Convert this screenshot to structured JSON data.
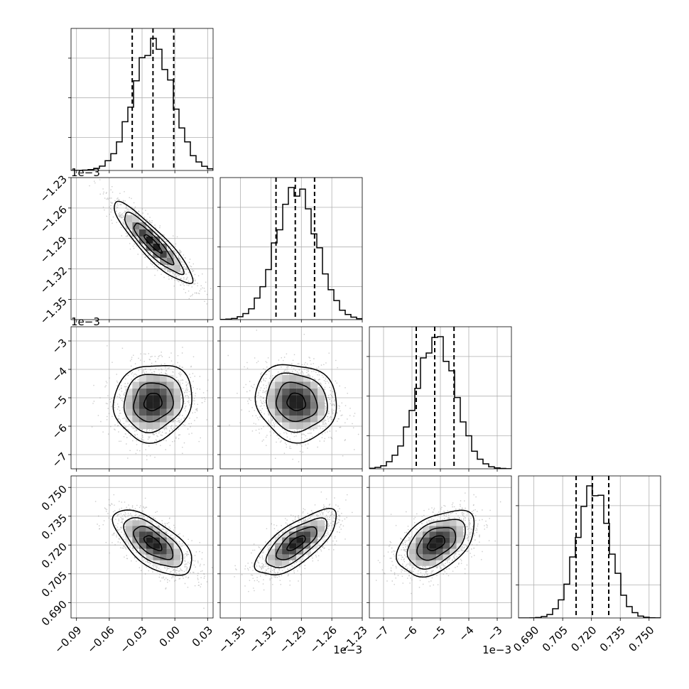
{
  "chart_data": {
    "type": "corner",
    "parameters": [
      {
        "range": [
          -0.095,
          0.035
        ],
        "ticks": [
          -0.09,
          -0.06,
          -0.03,
          0.0,
          0.03
        ],
        "tick_labels": [
          "−0.09",
          "−0.06",
          "−0.03",
          "0.00",
          "0.03"
        ],
        "offset_label": "",
        "mean": -0.02,
        "sigma": 0.018,
        "quantiles": [
          -0.039,
          -0.02,
          -0.001
        ]
      },
      {
        "range": [
          -1.37,
          -1.23
        ],
        "ticks": [
          -1.35,
          -1.32,
          -1.29,
          -1.26,
          -1.23
        ],
        "tick_labels": [
          "−1.35",
          "−1.32",
          "−1.29",
          "−1.26",
          "−1.23"
        ],
        "offset_label": "1e−3",
        "mean": -1.295,
        "sigma": 0.02,
        "quantiles": [
          -1.315,
          -1.296,
          -1.277
        ]
      },
      {
        "range": [
          -7.5,
          -2.5
        ],
        "ticks": [
          -7,
          -6,
          -5,
          -4,
          -3
        ],
        "tick_labels": [
          "−7",
          "−6",
          "−5",
          "−4",
          "−3"
        ],
        "offset_label": "1e−3",
        "mean": -5.15,
        "sigma": 0.68,
        "quantiles": [
          -5.85,
          -5.2,
          -4.52
        ]
      },
      {
        "range": [
          0.682,
          0.756
        ],
        "ticks": [
          0.69,
          0.705,
          0.72,
          0.735,
          0.75
        ],
        "tick_labels": [
          "0.690",
          "0.705",
          "0.720",
          "0.735",
          "0.750"
        ],
        "offset_label": "",
        "mean": 0.721,
        "sigma": 0.0085,
        "quantiles": [
          0.712,
          0.7205,
          0.729
        ]
      }
    ],
    "correlations": [
      [
        0,
        1,
        -0.9
      ],
      [
        0,
        2,
        0.1
      ],
      [
        1,
        2,
        -0.1
      ],
      [
        0,
        3,
        -0.65
      ],
      [
        1,
        3,
        0.72
      ],
      [
        2,
        3,
        0.45
      ]
    ],
    "histogram_bins": 25,
    "grid": true,
    "contour_levels": 3
  }
}
